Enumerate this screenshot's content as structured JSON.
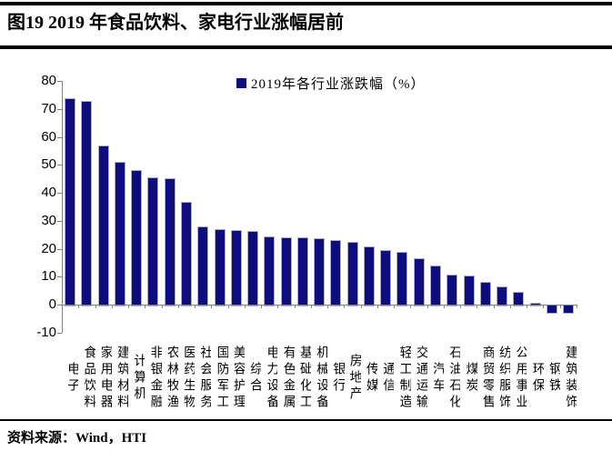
{
  "figure": {
    "title": "图19 2019 年食品饮料、家电行业涨幅居前"
  },
  "legend": {
    "label": "2019年各行业涨跌幅（%）"
  },
  "source": {
    "label": "资料来源：Wind，HTI"
  },
  "colors": {
    "bar": "#0d0d80",
    "axis": "#7f7f7f",
    "text": "#000000"
  },
  "chart_data": {
    "type": "bar",
    "title": "2019年各行业涨跌幅（%）",
    "xlabel": "",
    "ylabel": "",
    "ylim": [
      -10,
      80
    ],
    "yticks": [
      80,
      70,
      60,
      50,
      40,
      30,
      20,
      10,
      0,
      -10
    ],
    "grid": false,
    "legend_position": "top-center",
    "categories": [
      "电子",
      "食品饮料",
      "家用电器",
      "建筑材料",
      "计算机",
      "非银金融",
      "农林牧渔",
      "医药生物",
      "社会服务",
      "国防军工",
      "美容护理",
      "综合",
      "电力设备",
      "有色金属",
      "基础化工",
      "机械设备",
      "银行",
      "房地产",
      "传媒",
      "通信",
      "轻工制造",
      "交通运输",
      "汽车",
      "石油石化",
      "煤炭",
      "商贸零售",
      "纺织服饰",
      "公用事业",
      "环保",
      "钢铁",
      "建筑装饰"
    ],
    "values": [
      73.9,
      72.9,
      57.0,
      51.0,
      48.0,
      45.4,
      45.2,
      36.8,
      27.9,
      27.0,
      26.6,
      26.3,
      24.6,
      24.2,
      24.2,
      23.8,
      23.0,
      22.5,
      20.8,
      19.7,
      18.9,
      16.8,
      14.1,
      10.8,
      10.6,
      8.2,
      6.5,
      4.7,
      0.7,
      -2.5,
      -2.5
    ]
  }
}
